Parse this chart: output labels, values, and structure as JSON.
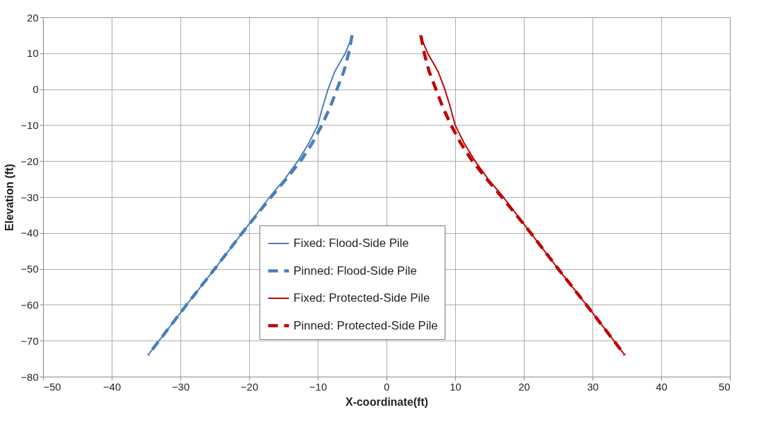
{
  "chart_data": {
    "type": "line",
    "xlabel": "X-coordinate(ft)",
    "ylabel": "Elevation (ft)",
    "xlim": [
      -50,
      50
    ],
    "xticks": [
      -50,
      -40,
      -30,
      -20,
      -10,
      0,
      10,
      20,
      30,
      40,
      50
    ],
    "ylim": [
      -80,
      20
    ],
    "yticks": [
      -80,
      -70,
      -60,
      -50,
      -40,
      -30,
      -20,
      -10,
      0,
      10,
      20
    ],
    "grid": true,
    "legend": "bottom",
    "marker": "none",
    "series": [
      {
        "name": "Fixed: Flood-Side Pile",
        "color": "#4a7ebb",
        "line_style": "solid",
        "x": [
          -4.9,
          -6,
          -7.5,
          -8.5,
          -9.3,
          -10,
          -11.3,
          -12.9,
          -14.8,
          -17,
          -21,
          -25,
          -29.1,
          -33.1,
          -34.7
        ],
        "values": [
          15,
          10,
          5,
          0,
          -5,
          -10,
          -15,
          -20,
          -25,
          -30,
          -40,
          -50,
          -60,
          -70,
          -74
        ]
      },
      {
        "name": "Pinned: Flood-Side Pile",
        "color": "#4a7ebb",
        "line_style": "dashed",
        "x": [
          -5,
          -5.5,
          -6.2,
          -7.2,
          -8.2,
          -9.4,
          -10.8,
          -12.5,
          -14.6,
          -16.8,
          -21,
          -25,
          -29.1,
          -33.1,
          -34.7
        ],
        "values": [
          15,
          10,
          5,
          0,
          -5,
          -10,
          -15,
          -20,
          -25,
          -30,
          -40,
          -50,
          -60,
          -70,
          -74
        ]
      },
      {
        "name": "Fixed: Protected-Side Pile",
        "color": "#c00000",
        "line_style": "solid",
        "x": [
          4.9,
          6,
          7.5,
          8.5,
          9.3,
          10,
          11.3,
          12.9,
          14.8,
          17,
          21,
          25,
          29.1,
          33.1,
          34.7
        ],
        "values": [
          15,
          10,
          5,
          0,
          -5,
          -10,
          -15,
          -20,
          -25,
          -30,
          -40,
          -50,
          -60,
          -70,
          -74
        ]
      },
      {
        "name": "Pinned: Protected-Side Pile",
        "color": "#c00000",
        "line_style": "dashed",
        "x": [
          5,
          5.5,
          6.2,
          7.2,
          8.2,
          9.4,
          10.8,
          12.5,
          14.6,
          16.8,
          21,
          25,
          29.1,
          33.1,
          34.7
        ],
        "values": [
          15,
          10,
          5,
          0,
          -5,
          -10,
          -15,
          -20,
          -25,
          -30,
          -40,
          -50,
          -60,
          -70,
          -74
        ]
      }
    ]
  }
}
